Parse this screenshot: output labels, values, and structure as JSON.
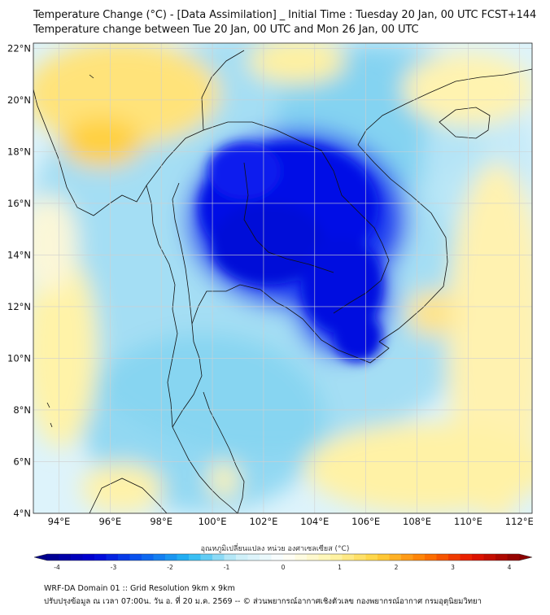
{
  "title": {
    "line1": "Temperature Change (°C) - [Data Assimilation] _ Initial Time : Tuesday 20 Jan, 00 UTC FCST+144",
    "line2": "Temperature change between Tue 20 Jan, 00 UTC and Mon 26 Jan, 00 UTC"
  },
  "map": {
    "lat_labels": [
      "22°N",
      "20°N",
      "18°N",
      "16°N",
      "14°N",
      "12°N",
      "10°N",
      "8°N",
      "6°N",
      "4°N"
    ],
    "lon_labels": [
      "94°E",
      "96°E",
      "98°E",
      "100°E",
      "102°E",
      "104°E",
      "106°E",
      "108°E",
      "110°E",
      "112°E"
    ],
    "lat_values": [
      22,
      20,
      18,
      16,
      14,
      12,
      10,
      8,
      6,
      4
    ],
    "lon_values": [
      94,
      96,
      98,
      100,
      102,
      104,
      106,
      108,
      110,
      112
    ]
  },
  "colorbar": {
    "title": "อุณหภูมิเปลี่ยนแปลง หน่วย องศาเซลเซียส (°C)",
    "ticks": [
      "-4",
      "-3",
      "-2",
      "-1",
      "0",
      "1",
      "2",
      "3",
      "4"
    ],
    "tick_values": [
      -4,
      -3,
      -2,
      -1,
      0,
      1,
      2,
      3,
      4
    ],
    "colors": [
      "#00008a",
      "#0000d8",
      "#0a5cf0",
      "#24b8f2",
      "#c8eef8",
      "#ffffff",
      "#fff6b0",
      "#ffd23c",
      "#ff7a00",
      "#e61400",
      "#8a0000"
    ]
  },
  "footer": {
    "line1": "WRF-DA Domain 01 :: Grid Resolution 9km x 9km",
    "line2": "ปรับปรุงข้อมูล ณ เวลา 07:00น. วัน อ. ที่ 20 ม.ค. 2569 -- © ส่วนพยากรณ์อากาศเชิงตัวเลข กองพยากรณ์อากาศ กรมอุตุนิยมวิทยา"
  }
}
